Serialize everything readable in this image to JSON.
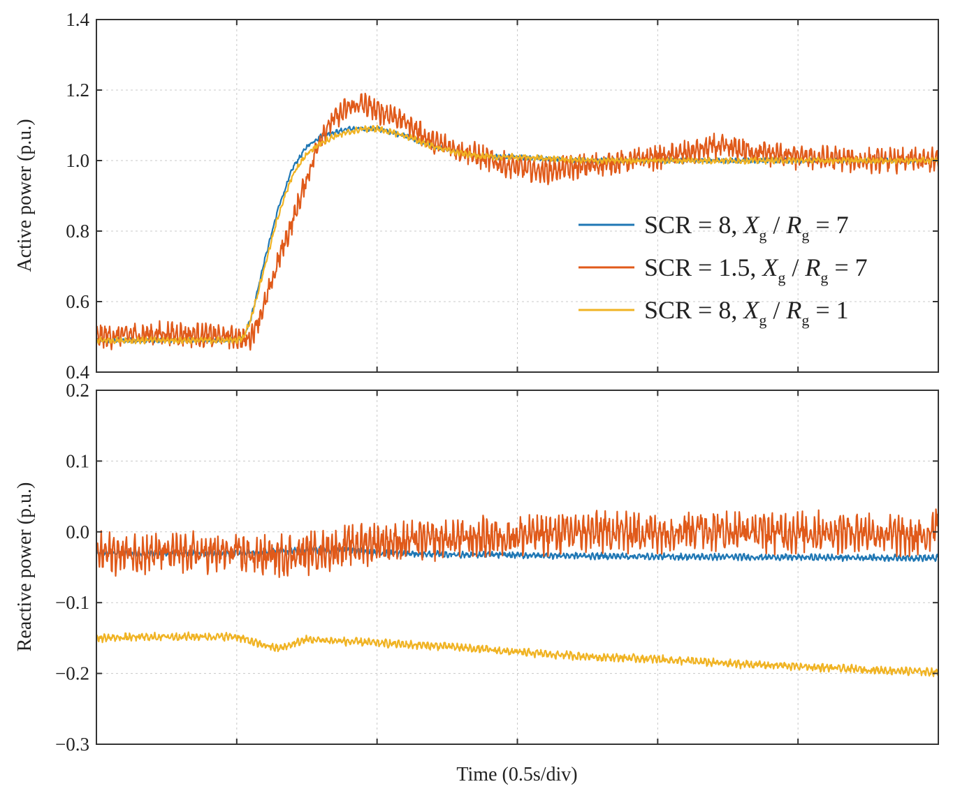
{
  "chart_data": [
    {
      "type": "line",
      "panel": "top",
      "ylabel": "Active power (p.u.)",
      "xlabel": "",
      "ylim": [
        0.4,
        1.4
      ],
      "yticks": [
        "1.4",
        "1.2",
        "1.0",
        "0.8",
        "0.6",
        "0.4"
      ],
      "ytick_values": [
        1.4,
        1.2,
        1.0,
        0.8,
        0.6,
        0.4
      ],
      "x_divisions": 6,
      "grid": true,
      "legend_position": "center-right",
      "series": [
        {
          "name": "SCR = 8, Xg/Rg = 7",
          "color": "#1f77b4",
          "x": [
            0,
            1.0,
            1.05,
            1.1,
            1.2,
            1.3,
            1.4,
            1.5,
            1.6,
            1.7,
            1.8,
            1.9,
            2.0,
            2.2,
            2.4,
            2.6,
            2.8,
            3.0,
            3.5,
            4.0,
            4.5,
            5.0,
            5.5,
            6.0
          ],
          "values": [
            0.49,
            0.49,
            0.5,
            0.55,
            0.72,
            0.87,
            0.98,
            1.04,
            1.07,
            1.08,
            1.09,
            1.09,
            1.09,
            1.07,
            1.04,
            1.02,
            1.01,
            1.01,
            1.0,
            1.0,
            1.0,
            1.0,
            1.0,
            1.0
          ],
          "noise": 0.006
        },
        {
          "name": "SCR = 1.5, Xg/Rg = 7",
          "color": "#e05a1a",
          "x": [
            0,
            0.5,
            1.0,
            1.05,
            1.1,
            1.2,
            1.3,
            1.4,
            1.5,
            1.6,
            1.7,
            1.8,
            1.9,
            2.0,
            2.1,
            2.2,
            2.3,
            2.4,
            2.6,
            2.8,
            3.0,
            3.2,
            3.4,
            3.6,
            3.8,
            4.0,
            4.2,
            4.4,
            4.6,
            4.8,
            5.0,
            5.5,
            6.0
          ],
          "values": [
            0.5,
            0.51,
            0.5,
            0.49,
            0.5,
            0.59,
            0.72,
            0.83,
            0.95,
            1.07,
            1.12,
            1.15,
            1.16,
            1.14,
            1.13,
            1.11,
            1.08,
            1.05,
            1.03,
            1.0,
            0.98,
            0.97,
            0.98,
            0.99,
            1.0,
            1.01,
            1.02,
            1.04,
            1.03,
            1.02,
            1.01,
            1.0,
            1.0
          ],
          "noise": 0.03
        },
        {
          "name": "SCR = 8, Xg/Rg = 1",
          "color": "#f0b323",
          "x": [
            0,
            1.0,
            1.05,
            1.1,
            1.2,
            1.3,
            1.4,
            1.5,
            1.6,
            1.7,
            1.8,
            1.9,
            2.0,
            2.2,
            2.4,
            2.6,
            2.8,
            3.0,
            3.5,
            4.0,
            4.5,
            5.0,
            5.5,
            6.0
          ],
          "values": [
            0.49,
            0.49,
            0.5,
            0.55,
            0.7,
            0.85,
            0.96,
            1.02,
            1.05,
            1.07,
            1.08,
            1.09,
            1.09,
            1.07,
            1.04,
            1.02,
            1.01,
            1.01,
            1.0,
            1.0,
            1.0,
            1.0,
            1.0,
            1.0
          ],
          "noise": 0.008
        }
      ]
    },
    {
      "type": "line",
      "panel": "bottom",
      "ylabel": "Reactive power (p.u.)",
      "xlabel": "Time (0.5s/div)",
      "ylim": [
        -0.3,
        0.2
      ],
      "yticks": [
        "0.2",
        "0.1",
        "0.0",
        "−0.1",
        "−0.2",
        "−0.3"
      ],
      "ytick_values": [
        0.2,
        0.1,
        0.0,
        -0.1,
        -0.2,
        -0.3
      ],
      "x_divisions": 6,
      "grid": true,
      "series": [
        {
          "name": "SCR = 8, Xg/Rg = 7",
          "color": "#1f77b4",
          "x": [
            0,
            1.0,
            1.2,
            1.5,
            1.8,
            2.0,
            2.5,
            3.0,
            4.0,
            5.0,
            6.0
          ],
          "values": [
            -0.03,
            -0.03,
            -0.028,
            -0.026,
            -0.025,
            -0.03,
            -0.032,
            -0.033,
            -0.035,
            -0.036,
            -0.037
          ],
          "noise": 0.004
        },
        {
          "name": "SCR = 1.5, Xg/Rg = 7",
          "color": "#e05a1a",
          "x": [
            0,
            0.5,
            1.0,
            1.2,
            1.5,
            1.8,
            2.0,
            2.5,
            3.0,
            3.5,
            4.0,
            4.3,
            4.5,
            5.0,
            5.5,
            5.9,
            6.0
          ],
          "values": [
            -0.03,
            -0.03,
            -0.03,
            -0.035,
            -0.03,
            -0.02,
            -0.015,
            -0.01,
            -0.005,
            0.0,
            0.0,
            0.005,
            0.0,
            0.0,
            0.0,
            -0.01,
            0.02
          ],
          "noise": 0.025
        },
        {
          "name": "SCR = 8, Xg/Rg = 1",
          "color": "#f0b323",
          "x": [
            0,
            0.5,
            1.0,
            1.15,
            1.3,
            1.5,
            2.0,
            2.5,
            3.0,
            3.5,
            4.0,
            4.5,
            5.0,
            5.5,
            6.0
          ],
          "values": [
            -0.15,
            -0.148,
            -0.148,
            -0.158,
            -0.165,
            -0.152,
            -0.157,
            -0.162,
            -0.17,
            -0.176,
            -0.18,
            -0.186,
            -0.19,
            -0.195,
            -0.198
          ],
          "noise": 0.005
        }
      ]
    }
  ],
  "legend": {
    "entries": [
      {
        "prefix": "SCR = 8, ",
        "x_sym": "X",
        "sub": "g",
        "slash": "/",
        "r_sym": "R",
        "sub2": "g",
        "suffix": " = 7",
        "color": "#1f77b4"
      },
      {
        "prefix": "SCR = 1.5, ",
        "x_sym": "X",
        "sub": "g",
        "slash": "/",
        "r_sym": "R",
        "sub2": "g",
        "suffix": " = 7",
        "color": "#e05a1a"
      },
      {
        "prefix": "SCR = 8, ",
        "x_sym": "X",
        "sub": "g",
        "slash": "/",
        "r_sym": "R",
        "sub2": "g",
        "suffix": " = 1",
        "color": "#f0b323"
      }
    ]
  }
}
